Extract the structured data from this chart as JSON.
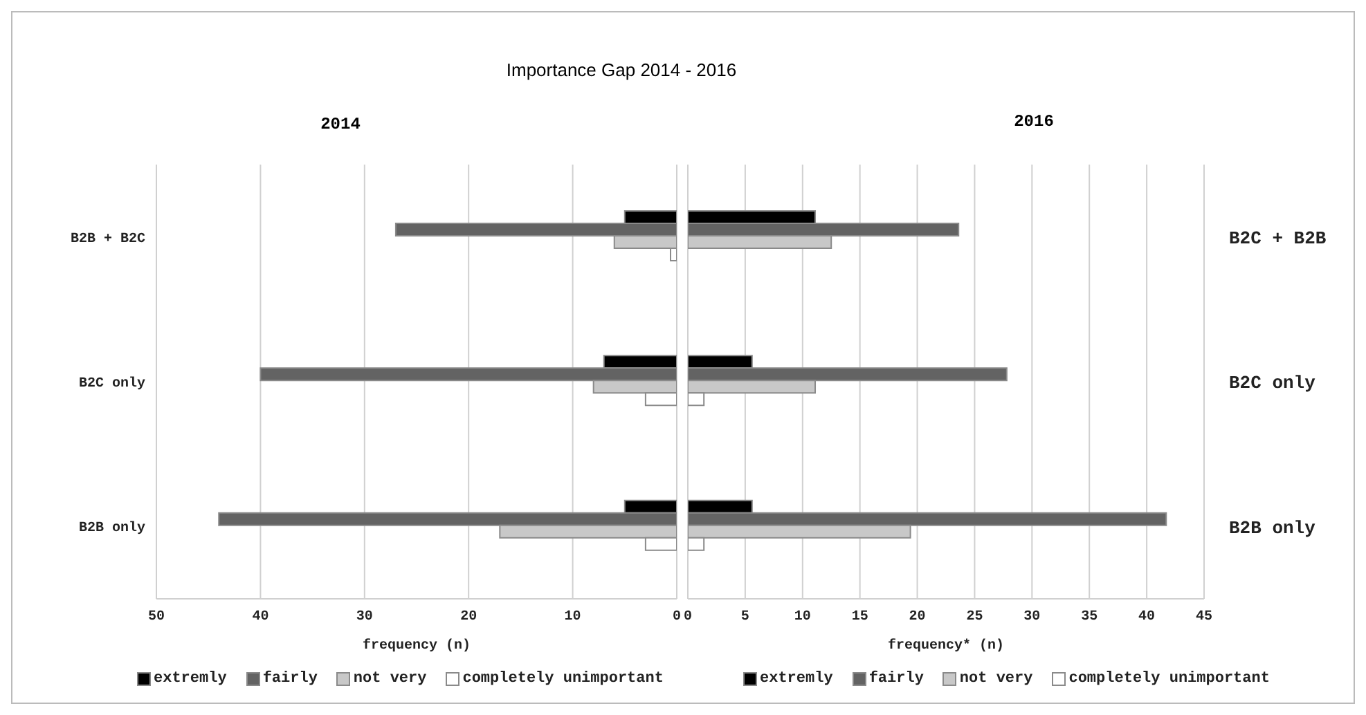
{
  "chart_data": [
    {
      "type": "bar",
      "orientation": "horizontal",
      "title": "Importance Gap 2014 - 2016",
      "subtitle": "2014",
      "xlabel": "frequency (n)",
      "categories": [
        "B2B + B2C",
        "B2C only",
        "B2B only"
      ],
      "series": [
        {
          "name": "extremly",
          "color": "#000000",
          "values": [
            5,
            7,
            5
          ]
        },
        {
          "name": "fairly",
          "color": "#636363",
          "values": [
            27,
            40,
            44
          ]
        },
        {
          "name": "not very",
          "color": "#c8c8c8",
          "values": [
            6,
            8,
            17
          ]
        },
        {
          "name": "completely unimportant",
          "color": "#ffffff",
          "values": [
            0.6,
            3,
            3
          ]
        }
      ],
      "xlim": [
        50,
        0
      ],
      "xticks": [
        50,
        40,
        30,
        20,
        10,
        0
      ],
      "grid": "x",
      "legend": "bottom"
    },
    {
      "type": "bar",
      "orientation": "horizontal",
      "title": "2016",
      "xlabel": "frequency* (n)",
      "categories": [
        "B2C + B2B",
        "B2C only",
        "B2B only"
      ],
      "series": [
        {
          "name": "extremly",
          "color": "#000000",
          "values": [
            11.1,
            5.6,
            5.6
          ]
        },
        {
          "name": "fairly",
          "color": "#636363",
          "values": [
            23.6,
            27.8,
            41.7
          ]
        },
        {
          "name": "not very",
          "color": "#c8c8c8",
          "values": [
            12.5,
            11.1,
            19.4
          ]
        },
        {
          "name": "completely unimportant",
          "color": "#ffffff",
          "values": [
            0,
            1.4,
            1.4
          ]
        }
      ],
      "xlim": [
        0,
        45
      ],
      "xticks": [
        0,
        5,
        10,
        15,
        20,
        25,
        30,
        35,
        40,
        45
      ],
      "grid": "x",
      "legend": "bottom"
    }
  ]
}
